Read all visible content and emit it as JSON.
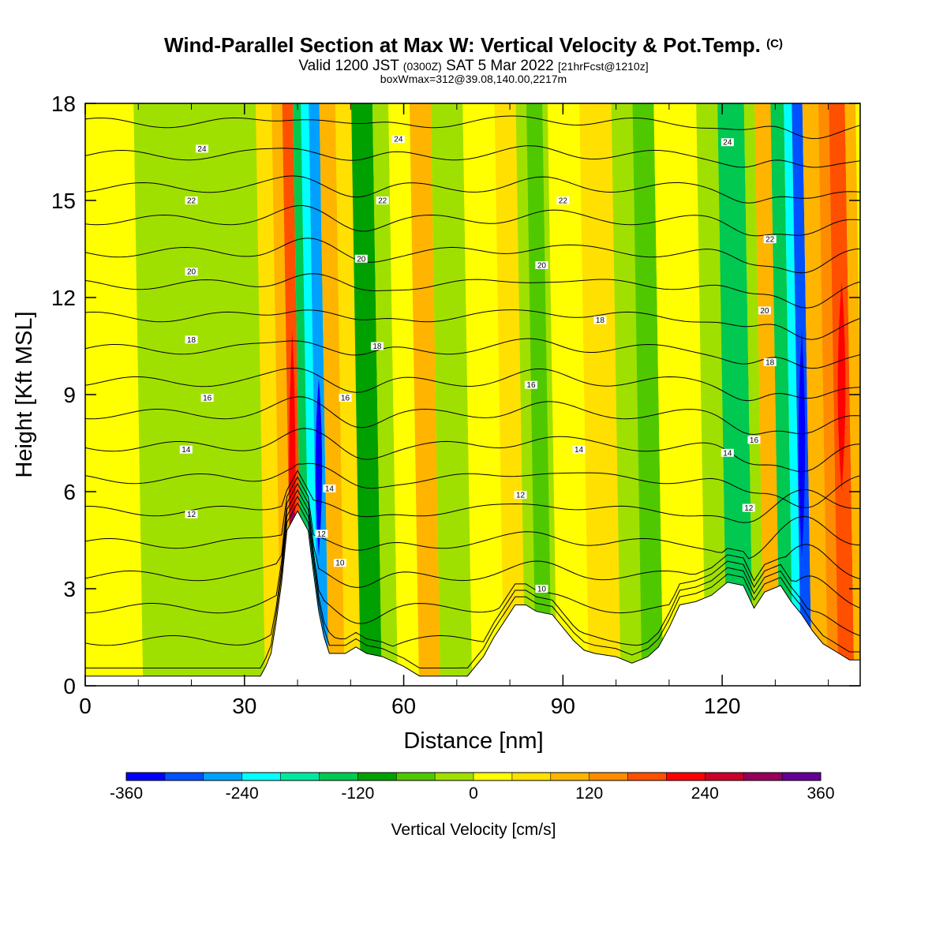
{
  "header": {
    "title": "Wind-Parallel Section at Max W: Vertical Velocity & Pot.Temp.",
    "copyright": "(C)",
    "valid_a": "Valid 1200 JST",
    "valid_utc": "(0300Z)",
    "valid_b": "SAT 5 Mar 2022",
    "forecast": "[21hrFcst@1210z]",
    "boxinfo": "boxWmax=312@39.08,140.00,2217m"
  },
  "chart_data": {
    "type": "heatmap",
    "title": "Wind-Parallel Section at Max W: Vertical Velocity & Pot.Temp.",
    "xlabel": "Distance [nm]",
    "ylabel": "Height [Kft MSL]",
    "xlim": [
      0,
      146
    ],
    "ylim": [
      0,
      18
    ],
    "x_ticks": [
      "0",
      "30",
      "60",
      "90",
      "120"
    ],
    "y_ticks": [
      "0",
      "3",
      "6",
      "9",
      "12",
      "15",
      "18"
    ],
    "colorbar": {
      "label": "Vertical Velocity [cm/s]",
      "ticks": [
        "-360",
        "-240",
        "-120",
        "0",
        "120",
        "240",
        "360"
      ],
      "colors": [
        "#0000ff",
        "#0050ff",
        "#00a0ff",
        "#00ffff",
        "#00e8a0",
        "#00c850",
        "#00a000",
        "#50c800",
        "#a0e000",
        "#ffff00",
        "#ffe000",
        "#ffb400",
        "#ff8c00",
        "#ff5000",
        "#ff0000",
        "#c8002a",
        "#96005a",
        "#640096"
      ]
    },
    "velocity_bands": [
      {
        "x": 0,
        "w": 14,
        "color": "#ffff00"
      },
      {
        "x": 10,
        "w": 24,
        "color": "#a0e000"
      },
      {
        "x": 33,
        "w": 5,
        "color": "#ffe000"
      },
      {
        "x": 36,
        "w": 3,
        "color": "#ffb400"
      },
      {
        "x": 38,
        "w": 2,
        "color": "#ff5000"
      },
      {
        "x": 40,
        "w": 2,
        "color": "#00c850"
      },
      {
        "x": 41.5,
        "w": 2,
        "color": "#00ffff"
      },
      {
        "x": 43,
        "w": 2,
        "color": "#00a0ff"
      },
      {
        "x": 45,
        "w": 3,
        "color": "#ffb400"
      },
      {
        "x": 48,
        "w": 3,
        "color": "#ffe000"
      },
      {
        "x": 51,
        "w": 4,
        "color": "#00a000"
      },
      {
        "x": 55,
        "w": 3,
        "color": "#a0e000"
      },
      {
        "x": 58,
        "w": 8,
        "color": "#ffff00"
      },
      {
        "x": 62,
        "w": 4,
        "color": "#ffb400"
      },
      {
        "x": 66,
        "w": 6,
        "color": "#a0e000"
      },
      {
        "x": 72,
        "w": 10,
        "color": "#ffff00"
      },
      {
        "x": 78,
        "w": 4,
        "color": "#ffe000"
      },
      {
        "x": 82,
        "w": 6,
        "color": "#a0e000"
      },
      {
        "x": 84,
        "w": 3,
        "color": "#50c800"
      },
      {
        "x": 88,
        "w": 6,
        "color": "#ffff00"
      },
      {
        "x": 94,
        "w": 6,
        "color": "#ffe000"
      },
      {
        "x": 100,
        "w": 6,
        "color": "#a0e000"
      },
      {
        "x": 104,
        "w": 4,
        "color": "#50c800"
      },
      {
        "x": 108,
        "w": 8,
        "color": "#ffff00"
      },
      {
        "x": 116,
        "w": 4,
        "color": "#a0e000"
      },
      {
        "x": 120,
        "w": 5,
        "color": "#00c850"
      },
      {
        "x": 125,
        "w": 2,
        "color": "#a0e000"
      },
      {
        "x": 127,
        "w": 3,
        "color": "#ffb400"
      },
      {
        "x": 130,
        "w": 2.5,
        "color": "#00c850"
      },
      {
        "x": 132.5,
        "w": 1.5,
        "color": "#00ffff"
      },
      {
        "x": 134,
        "w": 2,
        "color": "#0050ff"
      },
      {
        "x": 136,
        "w": 3,
        "color": "#ffb400"
      },
      {
        "x": 139,
        "w": 3,
        "color": "#ff8c00"
      },
      {
        "x": 141,
        "w": 3,
        "color": "#ff5000"
      },
      {
        "x": 144,
        "w": 2,
        "color": "#ffb400"
      }
    ],
    "velocity_patches": [
      {
        "x": 38.2,
        "y0": 2.0,
        "y1": 11.0,
        "w": 1.6,
        "color": "#ff0000"
      },
      {
        "x": 43.2,
        "y0": 4.0,
        "y1": 9.5,
        "w": 1.6,
        "color": "#0000ff"
      },
      {
        "x": 134.2,
        "y0": 4.0,
        "y1": 11.0,
        "w": 1.6,
        "color": "#0000ff"
      },
      {
        "x": 141.5,
        "y0": 6.0,
        "y1": 12.5,
        "w": 2.0,
        "color": "#ff0000"
      },
      {
        "x": 38.5,
        "y0": 4.5,
        "y1": 5.5,
        "w": 1.2,
        "color": "#96005a"
      }
    ],
    "terrain": [
      [
        0,
        0.3
      ],
      [
        33,
        0.3
      ],
      [
        34,
        0.6
      ],
      [
        35,
        1.0
      ],
      [
        36,
        2.0
      ],
      [
        37,
        3.2
      ],
      [
        38,
        4.8
      ],
      [
        40,
        5.4
      ],
      [
        42,
        4.8
      ],
      [
        43,
        3.5
      ],
      [
        44,
        2.3
      ],
      [
        45,
        1.5
      ],
      [
        46,
        1.0
      ],
      [
        47,
        1.0
      ],
      [
        49,
        1.0
      ],
      [
        51,
        1.2
      ],
      [
        53,
        1.0
      ],
      [
        56,
        0.9
      ],
      [
        60,
        0.6
      ],
      [
        63,
        0.3
      ],
      [
        72,
        0.3
      ],
      [
        73,
        0.5
      ],
      [
        75,
        0.9
      ],
      [
        77,
        1.5
      ],
      [
        79,
        2.0
      ],
      [
        81,
        2.5
      ],
      [
        83,
        2.5
      ],
      [
        85,
        2.3
      ],
      [
        88,
        2.2
      ],
      [
        90,
        1.8
      ],
      [
        92,
        1.4
      ],
      [
        94,
        1.1
      ],
      [
        96,
        1.0
      ],
      [
        100,
        0.9
      ],
      [
        103,
        0.7
      ],
      [
        106,
        0.9
      ],
      [
        108,
        1.2
      ],
      [
        110,
        1.8
      ],
      [
        112,
        2.5
      ],
      [
        115,
        2.6
      ],
      [
        118,
        2.8
      ],
      [
        121,
        3.2
      ],
      [
        124,
        3.1
      ],
      [
        126,
        2.4
      ],
      [
        128,
        2.9
      ],
      [
        131,
        3.1
      ],
      [
        133,
        2.6
      ],
      [
        135,
        2.2
      ],
      [
        137,
        1.7
      ],
      [
        139,
        1.3
      ],
      [
        142,
        1.0
      ],
      [
        144,
        0.8
      ],
      [
        146,
        0.8
      ]
    ],
    "theta_levels": [
      9,
      10,
      11,
      12,
      13,
      14,
      15,
      16,
      17,
      18,
      19,
      20,
      21,
      22,
      23,
      24,
      25,
      26
    ],
    "theta_labels": [
      {
        "text": "24",
        "x": 22,
        "y": 16.6
      },
      {
        "text": "24",
        "x": 59,
        "y": 16.9
      },
      {
        "text": "24",
        "x": 121,
        "y": 16.8
      },
      {
        "text": "22",
        "x": 20,
        "y": 15.0
      },
      {
        "text": "22",
        "x": 56,
        "y": 15.0
      },
      {
        "text": "22",
        "x": 90,
        "y": 15.0
      },
      {
        "text": "22",
        "x": 129,
        "y": 13.8
      },
      {
        "text": "20",
        "x": 20,
        "y": 12.8
      },
      {
        "text": "20",
        "x": 52,
        "y": 13.2
      },
      {
        "text": "20",
        "x": 86,
        "y": 13.0
      },
      {
        "text": "20",
        "x": 128,
        "y": 11.6
      },
      {
        "text": "18",
        "x": 20,
        "y": 10.7
      },
      {
        "text": "18",
        "x": 55,
        "y": 10.5
      },
      {
        "text": "18",
        "x": 97,
        "y": 11.3
      },
      {
        "text": "18",
        "x": 129,
        "y": 10.0
      },
      {
        "text": "16",
        "x": 23,
        "y": 8.9
      },
      {
        "text": "16",
        "x": 49,
        "y": 8.9
      },
      {
        "text": "16",
        "x": 84,
        "y": 9.3
      },
      {
        "text": "16",
        "x": 126,
        "y": 7.6
      },
      {
        "text": "14",
        "x": 19,
        "y": 7.3
      },
      {
        "text": "14",
        "x": 46,
        "y": 6.1
      },
      {
        "text": "14",
        "x": 93,
        "y": 7.3
      },
      {
        "text": "14",
        "x": 121,
        "y": 7.2
      },
      {
        "text": "12",
        "x": 20,
        "y": 5.3
      },
      {
        "text": "12",
        "x": 44.5,
        "y": 4.7
      },
      {
        "text": "12",
        "x": 82,
        "y": 5.9
      },
      {
        "text": "12",
        "x": 125,
        "y": 5.5
      },
      {
        "text": "10",
        "x": 48,
        "y": 3.8
      },
      {
        "text": "10",
        "x": 86,
        "y": 3.0
      }
    ]
  }
}
